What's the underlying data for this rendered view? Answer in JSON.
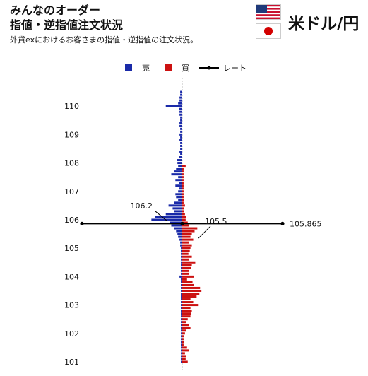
{
  "header": {
    "title_line1": "みんなのオーダー",
    "title_line2": "指値・逆指値注文状況",
    "description": "外貨exにおけるお客さまの指値・逆指値の注文状況。",
    "pair_label": "米ドル/円"
  },
  "flags": [
    {
      "icon": "us-flag-icon"
    },
    {
      "icon": "jp-flag-icon"
    }
  ],
  "colors": {
    "sell": "#1a2aa8",
    "buy": "#cc1111",
    "rate": "#000000"
  },
  "chart_data": {
    "type": "bar",
    "orientation": "horizontal-diverging",
    "legend": [
      "売",
      "買",
      "レート"
    ],
    "legend_position": "top-center",
    "ylim": [
      100.85,
      110.85
    ],
    "yticks": [
      101,
      102,
      103,
      104,
      105,
      106,
      107,
      108,
      109,
      110
    ],
    "rate": {
      "value": 105.865,
      "label": "105.865"
    },
    "annotations": [
      {
        "text": "106.2",
        "price": 106.2,
        "side": "sell"
      },
      {
        "text": "105.5",
        "price": 105.5,
        "side": "buy"
      }
    ],
    "series": [
      {
        "name": "売",
        "prices": [
          110.5,
          110.4,
          110.3,
          110.2,
          110.1,
          110.0,
          109.9,
          109.8,
          109.7,
          109.6,
          109.5,
          109.4,
          109.3,
          109.2,
          109.1,
          109.0,
          108.9,
          108.8,
          108.7,
          108.6,
          108.5,
          108.4,
          108.3,
          108.2,
          108.1,
          108.0,
          107.9,
          107.8,
          107.7,
          107.6,
          107.5,
          107.4,
          107.3,
          107.2,
          107.1,
          107.0,
          106.9,
          106.8,
          106.7,
          106.6,
          106.5,
          106.4,
          106.3,
          106.2,
          106.1,
          106.0,
          105.9,
          105.8,
          105.7,
          105.6,
          105.5,
          105.4,
          105.3,
          105.2,
          105.1,
          105.0,
          104.9,
          104.8,
          104.7,
          104.6,
          104.5,
          104.4,
          104.3,
          104.2,
          104.1,
          104.0,
          103.9,
          103.8,
          103.7,
          103.6,
          103.5,
          103.4,
          103.3,
          103.2,
          103.1,
          103.0,
          102.9,
          102.8,
          102.7,
          102.6,
          102.5,
          102.4,
          102.3,
          102.2,
          102.1,
          102.0,
          101.9,
          101.8,
          101.7,
          101.6,
          101.5,
          101.4,
          101.3,
          101.2,
          101.1,
          101.0
        ],
        "values": [
          3,
          3,
          4,
          4,
          6,
          24,
          5,
          4,
          4,
          3,
          3,
          4,
          4,
          3,
          3,
          4,
          3,
          4,
          3,
          3,
          3,
          4,
          3,
          5,
          8,
          7,
          6,
          9,
          12,
          16,
          6,
          10,
          5,
          10,
          5,
          6,
          10,
          9,
          6,
          12,
          20,
          14,
          12,
          24,
          40,
          45,
          18,
          16,
          12,
          9,
          7,
          6,
          4,
          3,
          3,
          2,
          2,
          2,
          2,
          2,
          2,
          2,
          2,
          2,
          2,
          4,
          2,
          2,
          2,
          2,
          2,
          2,
          2,
          2,
          2,
          2,
          2,
          2,
          2,
          2,
          2,
          2,
          2,
          2,
          2,
          2,
          2,
          2,
          2,
          2,
          2,
          2,
          2,
          2,
          2,
          2
        ]
      },
      {
        "name": "買",
        "prices": [
          110.5,
          110.4,
          110.3,
          110.2,
          110.1,
          110.0,
          109.9,
          109.8,
          109.7,
          109.6,
          109.5,
          109.4,
          109.3,
          109.2,
          109.1,
          109.0,
          108.9,
          108.8,
          108.7,
          108.6,
          108.5,
          108.4,
          108.3,
          108.2,
          108.1,
          108.0,
          107.9,
          107.8,
          107.7,
          107.6,
          107.5,
          107.4,
          107.3,
          107.2,
          107.1,
          107.0,
          106.9,
          106.8,
          106.7,
          106.6,
          106.5,
          106.4,
          106.3,
          106.2,
          106.1,
          106.0,
          105.9,
          105.8,
          105.7,
          105.6,
          105.5,
          105.4,
          105.3,
          105.2,
          105.1,
          105.0,
          104.9,
          104.8,
          104.7,
          104.6,
          104.5,
          104.4,
          104.3,
          104.2,
          104.1,
          104.0,
          103.9,
          103.8,
          103.7,
          103.6,
          103.5,
          103.4,
          103.3,
          103.2,
          103.1,
          103.0,
          102.9,
          102.8,
          102.7,
          102.6,
          102.5,
          102.4,
          102.3,
          102.2,
          102.1,
          102.0,
          101.9,
          101.8,
          101.7,
          101.6,
          101.5,
          101.4,
          101.3,
          101.2,
          101.1,
          101.0
        ],
        "values": [
          0,
          0,
          0,
          0,
          0,
          0,
          0,
          0,
          0,
          0,
          0,
          0,
          0,
          0,
          0,
          0,
          0,
          0,
          0,
          0,
          0,
          0,
          0,
          0,
          0,
          0,
          5,
          2,
          2,
          2,
          2,
          2,
          2,
          2,
          2,
          2,
          2,
          2,
          3,
          2,
          4,
          3,
          3,
          4,
          6,
          5,
          8,
          10,
          22,
          18,
          14,
          12,
          16,
          10,
          14,
          12,
          11,
          9,
          14,
          10,
          19,
          14,
          13,
          10,
          10,
          17,
          7,
          15,
          17,
          26,
          28,
          25,
          21,
          12,
          16,
          24,
          12,
          14,
          13,
          12,
          8,
          6,
          10,
          12,
          6,
          4,
          3,
          2,
          3,
          2,
          7,
          10,
          4,
          6,
          5,
          8
        ]
      }
    ]
  }
}
